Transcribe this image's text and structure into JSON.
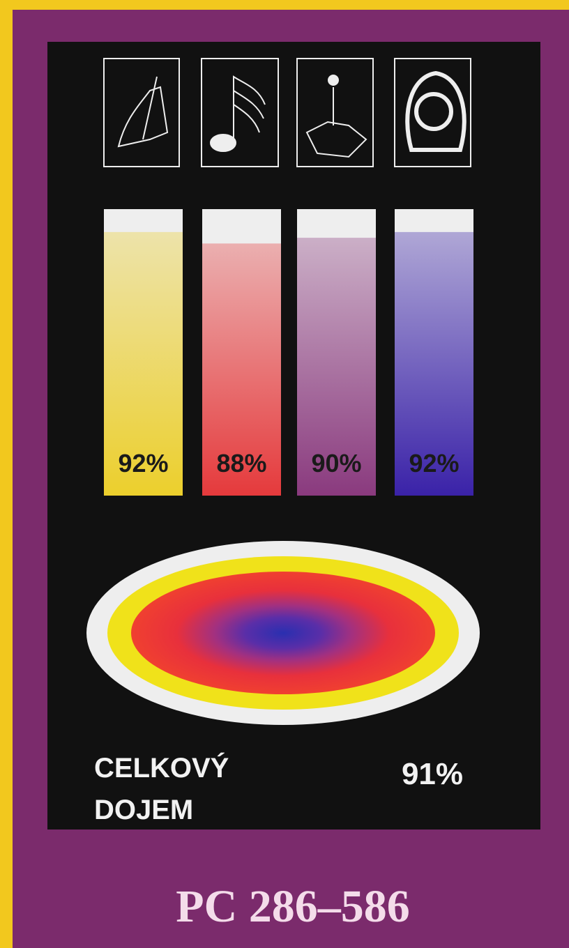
{
  "chart_data": {
    "type": "bar",
    "categories": [
      null,
      null,
      null,
      null
    ],
    "values": [
      92,
      88,
      90,
      92
    ],
    "value_labels": [
      "92%",
      "88%",
      "90%",
      "92%"
    ],
    "colors": [
      "#eccf2c",
      "#e53a3c",
      "#8a3a7e",
      "#3a22a8"
    ],
    "ylim": [
      0,
      100
    ]
  },
  "overall": {
    "label": [
      "CELKOVÝ",
      "DOJEM"
    ],
    "score": "91%"
  },
  "platform": "PC 286–586"
}
